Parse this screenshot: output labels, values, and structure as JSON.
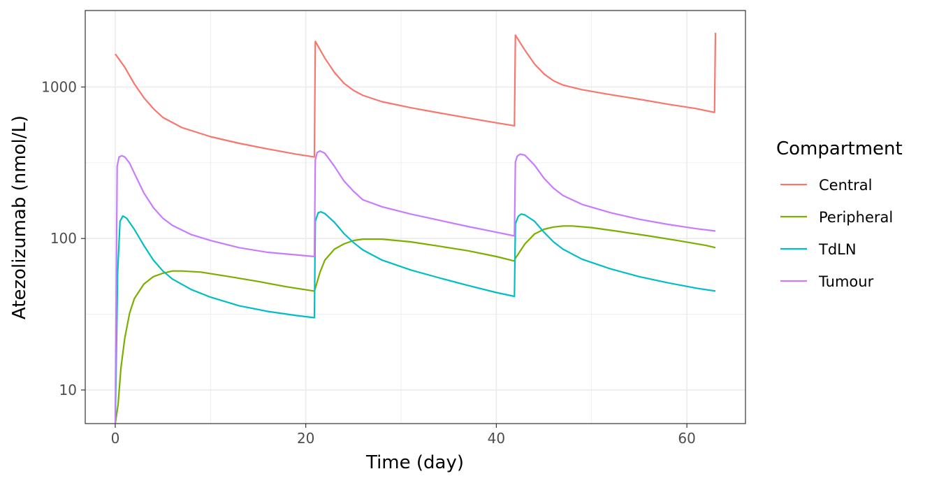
{
  "chart_data": {
    "type": "line",
    "title": "",
    "xlabel": "Time (day)",
    "ylabel": "Atezolizumab (nmol/L)",
    "xlim": [
      -3.15,
      66.15
    ],
    "ylim": [
      6.0,
      3200
    ],
    "y_scale": "log10",
    "x_ticks": [
      0,
      20,
      40,
      60
    ],
    "x_tick_labels": [
      "0",
      "20",
      "40",
      "60"
    ],
    "y_ticks": [
      10,
      100,
      1000
    ],
    "y_tick_labels": [
      "10",
      "100",
      "1000"
    ],
    "grid": true,
    "legend": {
      "title": "Compartment",
      "position": "right"
    },
    "series": [
      {
        "name": "Central",
        "color": "#F8766D",
        "x": [
          0,
          1,
          2,
          3,
          4,
          5,
          7,
          10,
          13,
          16,
          19,
          20.9,
          21,
          22,
          23,
          24,
          25,
          26,
          28,
          31,
          34,
          37,
          40,
          41.9,
          42,
          43,
          44,
          45,
          46,
          47,
          49,
          52,
          55,
          58,
          61,
          62.9,
          63
        ],
        "y": [
          1650,
          1350,
          1050,
          850,
          720,
          630,
          540,
          470,
          425,
          390,
          360,
          345,
          2000,
          1550,
          1250,
          1060,
          950,
          880,
          800,
          730,
          675,
          625,
          580,
          555,
          2200,
          1750,
          1420,
          1220,
          1100,
          1030,
          960,
          890,
          830,
          770,
          720,
          680,
          2280
        ]
      },
      {
        "name": "Peripheral",
        "color": "#7CAE00",
        "x": [
          0,
          0.3,
          0.6,
          1,
          1.5,
          2,
          3,
          4,
          5,
          6,
          7,
          9,
          12,
          15,
          18,
          20.9,
          21,
          21.5,
          22,
          23,
          24,
          25,
          26,
          28,
          31,
          34,
          37,
          40,
          41.9,
          42,
          43,
          44,
          45,
          46,
          47,
          48,
          50,
          53,
          56,
          59,
          62,
          63
        ],
        "y": [
          6,
          8,
          14,
          22,
          32,
          40,
          50,
          56,
          59,
          61,
          61,
          60,
          56,
          52,
          48,
          45,
          47,
          60,
          72,
          85,
          92,
          97,
          99,
          99,
          95,
          89,
          83,
          76,
          71,
          74,
          92,
          107,
          115,
          119,
          121,
          121,
          118,
          111,
          104,
          97,
          90,
          87
        ]
      },
      {
        "name": "TdLN",
        "color": "#00BFC4",
        "x": [
          0,
          0.25,
          0.5,
          0.8,
          1.2,
          2,
          3,
          4,
          5,
          6,
          8,
          10,
          13,
          16,
          19,
          20.9,
          21,
          21.3,
          21.6,
          22,
          23,
          24,
          25,
          26,
          28,
          31,
          34,
          37,
          40,
          41.9,
          42,
          42.3,
          42.6,
          43,
          44,
          45,
          46,
          47,
          49,
          52,
          55,
          58,
          61,
          63
        ],
        "y": [
          6,
          60,
          130,
          141,
          136,
          115,
          90,
          72,
          61,
          54,
          46,
          41,
          36,
          33,
          31,
          30,
          130,
          148,
          150,
          146,
          128,
          108,
          94,
          84,
          72,
          62,
          55,
          49,
          44,
          41.5,
          125,
          140,
          145,
          143,
          130,
          110,
          95,
          85,
          73,
          63,
          56,
          51,
          47,
          45
        ]
      },
      {
        "name": "Tumour",
        "color": "#C77CFF",
        "x": [
          0,
          0.2,
          0.4,
          0.7,
          1,
          1.5,
          2,
          3,
          4,
          5,
          6,
          8,
          10,
          13,
          16,
          19,
          20.9,
          21,
          21.2,
          21.5,
          22,
          23,
          24,
          25,
          26,
          28,
          31,
          34,
          37,
          40,
          41.9,
          42,
          42.2,
          42.5,
          43,
          44,
          45,
          46,
          47,
          49,
          52,
          55,
          58,
          61,
          63
        ],
        "y": [
          6,
          300,
          345,
          352,
          345,
          315,
          270,
          200,
          160,
          136,
          122,
          106,
          97,
          87,
          81,
          78,
          76,
          330,
          370,
          378,
          365,
          300,
          240,
          205,
          180,
          162,
          145,
          132,
          120,
          110,
          104,
          320,
          350,
          360,
          355,
          305,
          250,
          215,
          192,
          168,
          148,
          134,
          124,
          116,
          112
        ]
      }
    ]
  }
}
